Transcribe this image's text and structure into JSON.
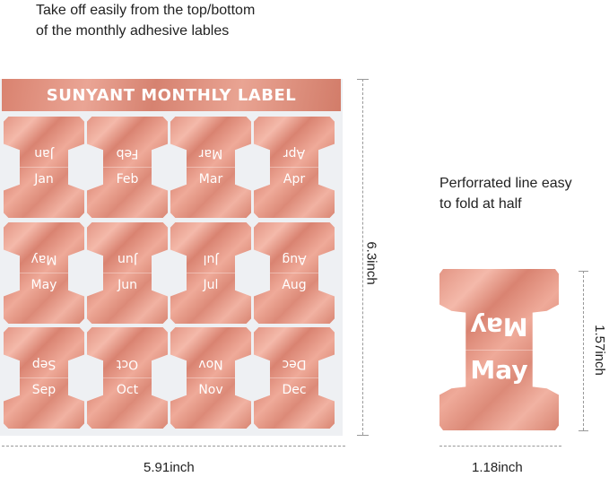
{
  "top_caption": [
    "Take off easily from the top/bottom",
    "of the monthly adhesive lables"
  ],
  "sheet": {
    "title": "SUNYANT MONTHLY LABEL",
    "months": [
      "Jan",
      "Feb",
      "Mar",
      "Apr",
      "May",
      "Jun",
      "Jul",
      "Aug",
      "Sep",
      "Oct",
      "Nov",
      "Dec"
    ]
  },
  "side_caption": [
    "Perforrated line easy",
    "to fold at half"
  ],
  "single_label": {
    "month": "May"
  },
  "dimensions": {
    "sheet_height": "6.3inch",
    "sheet_width": "5.91inch",
    "label_height": "1.57inch",
    "label_width": "1.18inch"
  },
  "colors": {
    "rose_gold": "#e39584",
    "sheet_bg": "#eef0f3"
  }
}
